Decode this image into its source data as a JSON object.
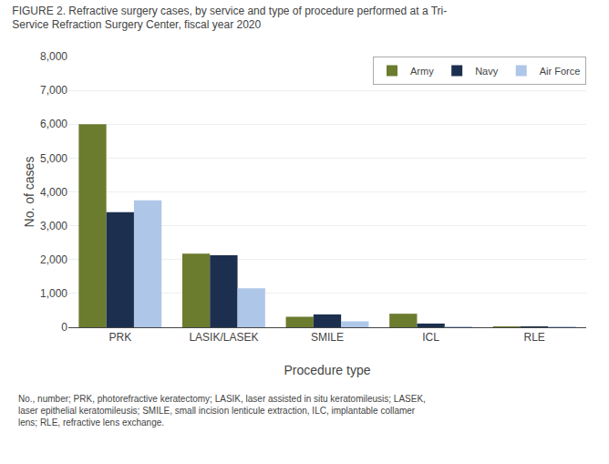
{
  "chart_data": {
    "type": "bar",
    "title": "FIGURE 2. Refractive surgery cases, by service and type of procedure performed at a Tri-\nService Refraction Surgery Center, fiscal year 2020",
    "xlabel": "Procedure type",
    "ylabel": "No. of cases",
    "categories": [
      "PRK",
      "LASIK/LASEK",
      "SMILE",
      "ICL",
      "RLE"
    ],
    "series": [
      {
        "name": "Army",
        "color": "#6b7c2f",
        "values": [
          6000,
          2175,
          310,
          400,
          10
        ]
      },
      {
        "name": "Navy",
        "color": "#1c2f4f",
        "values": [
          3400,
          2125,
          380,
          110,
          10
        ]
      },
      {
        "name": "Air Force",
        "color": "#aec6e8",
        "values": [
          3750,
          1150,
          175,
          5,
          10
        ]
      }
    ],
    "ylim": [
      0,
      8000
    ],
    "yticks": [
      0,
      {
        "value": 1000,
        "label": "1,000"
      },
      {
        "value": 2000,
        "label": "2,000"
      },
      {
        "value": 3000,
        "label": "3,000"
      },
      {
        "value": 4000,
        "label": "4,000"
      },
      {
        "value": 5000,
        "label": "5,000"
      },
      {
        "value": 6000,
        "label": "6,000"
      },
      {
        "value": 7000,
        "label": "7,000"
      },
      {
        "value": 8000,
        "label": "8,000"
      }
    ],
    "grid": true,
    "legend": "upper right",
    "annotations": [
      "No., number; PRK, photorefractive keratectomy; LASIK, laser assisted in situ keratomileusis; LASEK,\nlaser epithelial keratomileusis; SMILE, small incision lenticule extraction, ILC, implantable collamer\nlens; RLE, refractive lens exchange."
    ]
  }
}
